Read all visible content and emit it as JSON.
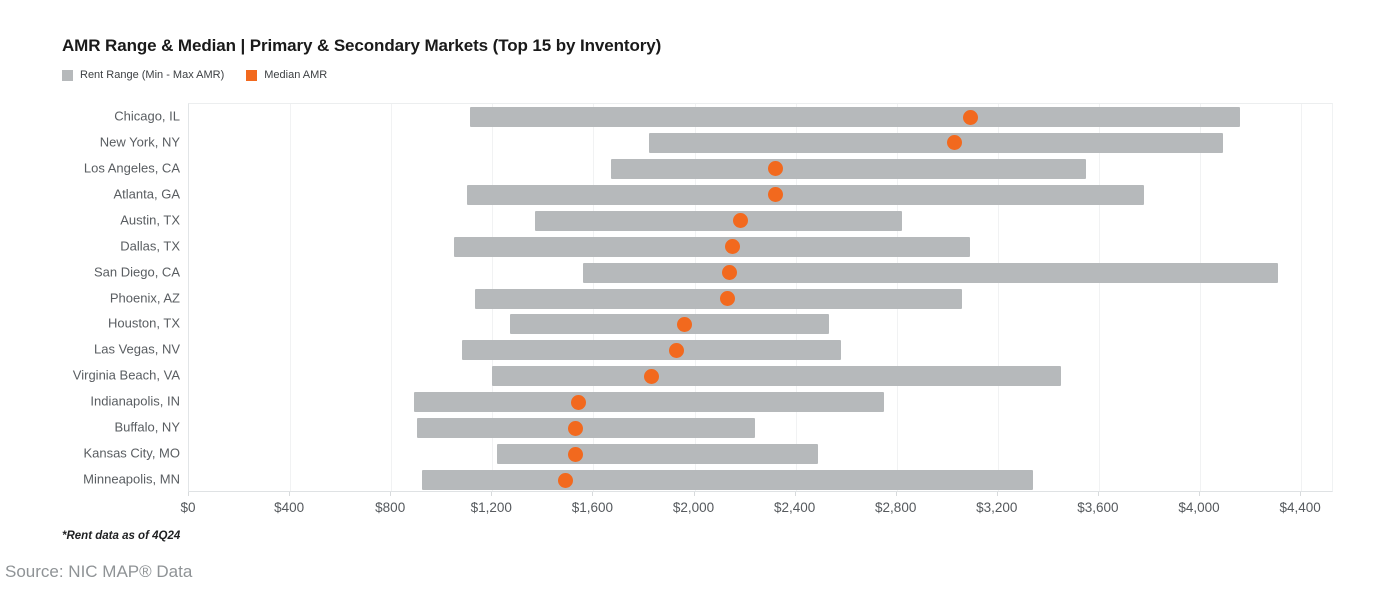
{
  "header": {
    "title": "AMR Range & Median | Primary & Secondary Markets (Top 15 by Inventory)"
  },
  "legend": {
    "items": [
      {
        "label": "Rent Range (Min - Max AMR)",
        "color": "#b6b9bb"
      },
      {
        "label": "Median AMR",
        "color": "#f2691e"
      }
    ]
  },
  "footer": {
    "note": "*Rent data as of 4Q24",
    "source": "Source: NIC MAP® Data"
  },
  "colors": {
    "bar": "#b6b9bb",
    "median": "#f2691e",
    "grid": "#f1f2f3",
    "axis_text": "#55595d",
    "category_text": "#595d61"
  },
  "chart_data": {
    "type": "bar",
    "variant": "horizontal-range-with-median-dot",
    "title": "AMR Range & Median | Primary & Secondary Markets (Top 15 by Inventory)",
    "categories": [
      "Chicago, IL",
      "New York, NY",
      "Los Angeles, CA",
      "Atlanta, GA",
      "Austin, TX",
      "Dallas, TX",
      "San Diego, CA",
      "Phoenix, AZ",
      "Houston, TX",
      "Las Vegas, NV",
      "Virginia Beach, VA",
      "Indianapolis, IN",
      "Buffalo, NY",
      "Kansas City, MO",
      "Minneapolis, MN"
    ],
    "series": [
      {
        "name": "Rent Range (Min - Max AMR)",
        "type": "range",
        "min": [
          1110,
          1820,
          1670,
          1100,
          1370,
          1050,
          1560,
          1130,
          1270,
          1080,
          1200,
          890,
          900,
          1220,
          920
        ],
        "max": [
          4160,
          4090,
          3550,
          3780,
          2820,
          3090,
          4310,
          3060,
          2530,
          2580,
          3450,
          2750,
          2240,
          2490,
          3340
        ]
      },
      {
        "name": "Median AMR",
        "type": "scatter",
        "values": [
          3090,
          3030,
          2320,
          2320,
          2180,
          2150,
          2140,
          2130,
          1960,
          1930,
          1830,
          1540,
          1530,
          1530,
          1490
        ]
      }
    ],
    "xlabel": "",
    "ylabel": "",
    "x_ticks": [
      "$0",
      "$400",
      "$800",
      "$1,200",
      "$1,600",
      "$2,000",
      "$2,400",
      "$2,800",
      "$3,200",
      "$3,600",
      "$4,000",
      "$4,400"
    ],
    "x_tick_values": [
      0,
      400,
      800,
      1200,
      1600,
      2000,
      2400,
      2800,
      3200,
      3600,
      4000,
      4400
    ],
    "xlim": [
      0,
      4530
    ],
    "grid": true,
    "legend_position": "top-left",
    "sort_order": "median descending",
    "footnote": "*Rent data as of 4Q24"
  }
}
